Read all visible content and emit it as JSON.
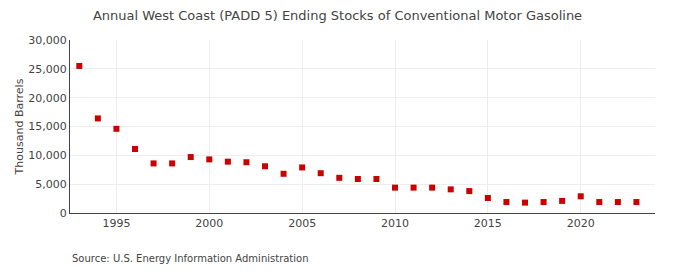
{
  "chart_data": {
    "type": "scatter",
    "title": "Annual West Coast (PADD 5) Ending Stocks of Conventional Motor Gasoline",
    "ylabel": "Thousand Barrels",
    "annotations": [
      "Source: U.S. Energy Information Administration"
    ],
    "x": [
      1993,
      1994,
      1995,
      1996,
      1997,
      1998,
      1999,
      2000,
      2001,
      2002,
      2003,
      2004,
      2005,
      2006,
      2007,
      2008,
      2009,
      2010,
      2011,
      2012,
      2013,
      2014,
      2015,
      2016,
      2017,
      2018,
      2019,
      2020,
      2021,
      2022,
      2023
    ],
    "values": [
      25500,
      16400,
      14600,
      11100,
      8600,
      8600,
      9700,
      9300,
      8900,
      8800,
      8100,
      6800,
      7900,
      6900,
      6100,
      5900,
      5900,
      4400,
      4400,
      4400,
      4100,
      3800,
      2600,
      1900,
      1800,
      1900,
      2100,
      2900,
      1900,
      1900,
      1900
    ],
    "color": "#cc0000",
    "marker": "square",
    "xlim": [
      1992.5,
      2024
    ],
    "xticks": [
      1995,
      2000,
      2005,
      2010,
      2015,
      2020
    ],
    "ylim": [
      0,
      30000
    ],
    "yticks": [
      0,
      {
        "value": 5000,
        "label": "5,000"
      },
      {
        "value": 10000,
        "label": "10,000"
      },
      {
        "value": 15000,
        "label": "15,000"
      },
      {
        "value": 20000,
        "label": "20,000"
      },
      {
        "value": 25000,
        "label": "25,000"
      },
      {
        "value": 30000,
        "label": "30,000"
      }
    ],
    "grid": true
  }
}
